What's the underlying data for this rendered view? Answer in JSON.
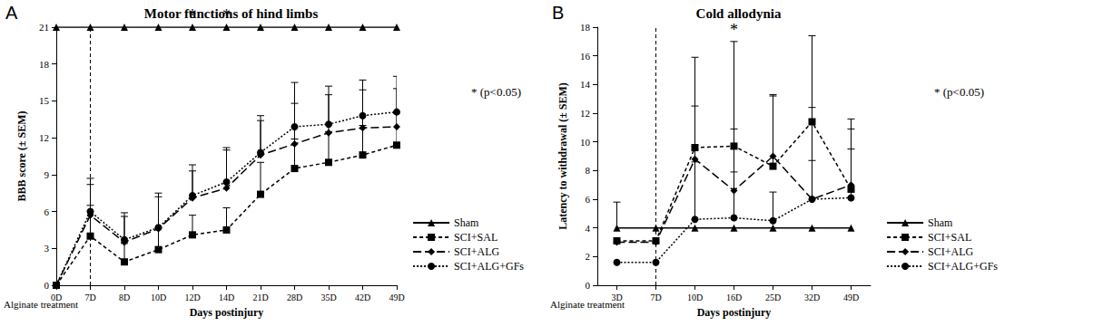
{
  "chart_data": [
    {
      "type": "line",
      "panel_label": "A",
      "title": "Motor functions of hind limbs",
      "x_label": "Days postinjury",
      "y_label": "BBB score (± SEM)",
      "categories": [
        "0D",
        "7D",
        "8D",
        "10D",
        "12D",
        "14D",
        "21D",
        "28D",
        "35D",
        "42D",
        "49D"
      ],
      "ylim": [
        0,
        21
      ],
      "yticks": [
        0,
        3,
        6,
        9,
        12,
        15,
        18,
        21
      ],
      "grid": false,
      "legend": "right",
      "series": [
        {
          "name": "Sham",
          "color": "#000000",
          "marker": "triangle",
          "line_style": "solid",
          "values": [
            21,
            21,
            21,
            21,
            21,
            21,
            21,
            21,
            21,
            21,
            21
          ],
          "errors": [
            null,
            null,
            null,
            null,
            null,
            null,
            null,
            null,
            null,
            null,
            null
          ]
        },
        {
          "name": "SCI+SAL",
          "color": "#000000",
          "marker": "square",
          "line_style": "dashed",
          "values": [
            0,
            4,
            1.9,
            2.9,
            4.1,
            4.5,
            7.4,
            9.5,
            10,
            10.6,
            11.4
          ],
          "errors": [
            null,
            2.5,
            1.5,
            1.8,
            1.6,
            1.8,
            2.6,
            2.4,
            2.5,
            2.4,
            2.6
          ]
        },
        {
          "name": "SCI+ALG",
          "color": "#000000",
          "marker": "diamond",
          "line_style": "longdash",
          "values": [
            0,
            5.7,
            3.5,
            4.6,
            7.1,
            7.9,
            10.6,
            11.5,
            12.4,
            12.8,
            12.9
          ],
          "errors": [
            null,
            2.5,
            2.1,
            2.6,
            2.2,
            3.1,
            2.8,
            3.3,
            3.1,
            3.1,
            3.1
          ]
        },
        {
          "name": "SCI+ALG+GFs",
          "color": "#000000",
          "marker": "circle",
          "line_style": "dotted",
          "values": [
            0,
            6,
            3.7,
            4.7,
            7.3,
            8.4,
            10.8,
            12.9,
            13.1,
            13.8,
            14.1
          ],
          "errors": [
            null,
            2.7,
            2.2,
            2.8,
            2.5,
            2.8,
            3,
            3.6,
            3.1,
            2.9,
            2.9
          ]
        }
      ],
      "annotations": [
        {
          "text": "*",
          "category": "12D"
        },
        {
          "text": "*",
          "category": "14D"
        }
      ],
      "note": "* (p<0.05)",
      "treatment": {
        "text": "Alginate treatment",
        "category": "7D"
      }
    },
    {
      "type": "line",
      "panel_label": "B",
      "title": "Cold allodynia",
      "x_label": "Days postinjury",
      "y_label": "Latency to withdrawal (± SEM)",
      "categories": [
        "3D",
        "7D",
        "10D",
        "16D",
        "25D",
        "32D",
        "49D"
      ],
      "ylim": [
        0,
        18
      ],
      "yticks": [
        0,
        2,
        4,
        6,
        8,
        10,
        12,
        14,
        16,
        18
      ],
      "grid": false,
      "legend": "right",
      "series": [
        {
          "name": "Sham",
          "color": "#000000",
          "marker": "triangle",
          "line_style": "solid",
          "values": [
            4,
            4,
            4,
            4,
            4,
            4,
            4
          ],
          "errors": [
            1.8,
            null,
            null,
            null,
            null,
            null,
            null
          ]
        },
        {
          "name": "SCI+SAL",
          "color": "#000000",
          "marker": "square",
          "line_style": "dashed",
          "values": [
            3.1,
            3.1,
            9.6,
            9.7,
            8.3,
            11.4,
            6.7
          ],
          "errors": [
            null,
            null,
            6.3,
            7.3,
            4.9,
            6,
            4.9
          ]
        },
        {
          "name": "SCI+ALG",
          "color": "#000000",
          "marker": "diamond",
          "line_style": "longdash",
          "values": [
            3,
            3,
            8.8,
            6.6,
            9,
            6,
            7
          ],
          "errors": [
            null,
            null,
            3.7,
            4.3,
            4.3,
            6.4,
            3.9
          ]
        },
        {
          "name": "SCI+ALG+GFs",
          "color": "#000000",
          "marker": "circle",
          "line_style": "dotted",
          "values": [
            1.6,
            1.6,
            4.6,
            4.7,
            4.5,
            6,
            6.1
          ],
          "errors": [
            null,
            null,
            4,
            3.2,
            2,
            2.7,
            3.4
          ]
        }
      ],
      "annotations": [
        {
          "text": "*",
          "category": "16D"
        }
      ],
      "note": "* (p<0.05)",
      "treatment": {
        "text": "Alginate treatment",
        "category": "7D"
      }
    }
  ]
}
